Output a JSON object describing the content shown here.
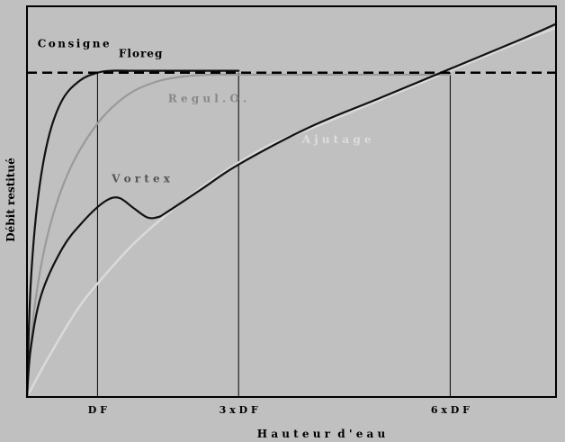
{
  "chart_data": {
    "type": "line",
    "xlabel": "H a u t e u r  d ' e a u",
    "ylabel": "Débit restitué",
    "xlim": [
      0,
      7.5
    ],
    "ylim": [
      0,
      10
    ],
    "x_ticks": [
      {
        "value": 1,
        "label": "D F"
      },
      {
        "value": 3,
        "label": "3 x D F"
      },
      {
        "value": 6,
        "label": "6 x D F"
      }
    ],
    "reference_lines": [
      {
        "name": "Consigne",
        "y": 8.3,
        "style": "dashed",
        "color": "#000000"
      }
    ],
    "series": [
      {
        "name": "Floreg",
        "color": "#111111",
        "x": [
          0,
          0.05,
          0.15,
          0.3,
          0.5,
          0.75,
          1.0,
          1.2,
          1.5,
          2.0,
          2.5,
          3.0
        ],
        "y": [
          0,
          2.8,
          5.0,
          6.6,
          7.6,
          8.1,
          8.3,
          8.35,
          8.35,
          8.35,
          8.35,
          8.35
        ]
      },
      {
        "name": "Regul.O.",
        "color": "#9a9a9a",
        "x": [
          0,
          0.1,
          0.3,
          0.6,
          1.0,
          1.4,
          1.8,
          2.2,
          2.6,
          3.0,
          4.5,
          6.0
        ],
        "y": [
          0,
          2.2,
          4.2,
          5.8,
          7.0,
          7.7,
          8.05,
          8.2,
          8.25,
          8.25,
          8.25,
          8.25
        ]
      },
      {
        "name": "Vortex",
        "color": "#111111",
        "x": [
          0,
          0.05,
          0.2,
          0.5,
          0.8,
          1.1,
          1.3,
          1.5,
          1.7,
          1.85,
          2.0,
          2.5,
          3.0,
          4.0,
          5.0,
          6.0,
          7.0,
          7.5
        ],
        "y": [
          0,
          1.2,
          2.6,
          3.8,
          4.5,
          5.0,
          5.1,
          4.85,
          4.6,
          4.6,
          4.75,
          5.35,
          5.95,
          6.9,
          7.65,
          8.4,
          9.15,
          9.55
        ]
      },
      {
        "name": "Ajutage",
        "color": "#dadada",
        "x": [
          0,
          0.3,
          0.7,
          1.0,
          1.5,
          2.0,
          2.5,
          3.0,
          3.5,
          4.0,
          5.0,
          6.0,
          7.0,
          7.5
        ],
        "y": [
          0,
          1.0,
          2.2,
          2.9,
          3.9,
          4.7,
          5.4,
          6.0,
          6.5,
          6.85,
          7.6,
          8.35,
          9.1,
          9.45
        ]
      }
    ],
    "annotations": [
      {
        "text": "Consigne",
        "x": 0.15,
        "y": 8.95
      },
      {
        "text": "Floreg",
        "x": 1.3,
        "y": 8.7
      },
      {
        "text": "R e g u l . O .",
        "x": 2.0,
        "y": 7.55
      },
      {
        "text": "V o r t e x",
        "x": 1.2,
        "y": 5.5
      },
      {
        "text": "A j u t a g e",
        "x": 3.9,
        "y": 6.5
      }
    ],
    "grid": false,
    "legend": "none"
  }
}
